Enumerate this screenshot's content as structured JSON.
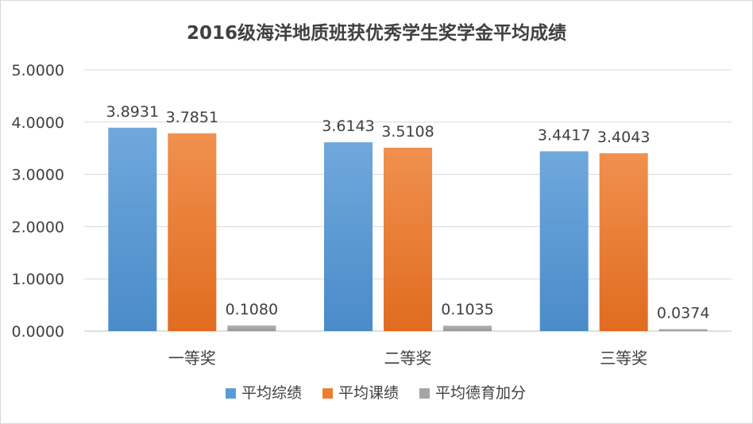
{
  "chart_data": {
    "type": "bar",
    "title": "2016级海洋地质班获优秀学生奖学金平均成绩",
    "categories": [
      "一等奖",
      "二等奖",
      "三等奖"
    ],
    "series": [
      {
        "name": "平均综绩",
        "values": [
          3.8931,
          3.6143,
          3.4417
        ],
        "labels": [
          "3.8931",
          "3.6143",
          "3.4417"
        ],
        "color": "#5B9BD5"
      },
      {
        "name": "平均课绩",
        "values": [
          3.7851,
          3.5108,
          3.4043
        ],
        "labels": [
          "3.7851",
          "3.5108",
          "3.4043"
        ],
        "color": "#ED7D31"
      },
      {
        "name": "平均德育加分",
        "values": [
          0.108,
          0.1035,
          0.0374
        ],
        "labels": [
          "0.1080",
          "0.1035",
          "0.0374"
        ],
        "color": "#A5A5A5"
      }
    ],
    "ylim": [
      0,
      5
    ],
    "yticks": [
      "0.0000",
      "1.0000",
      "2.0000",
      "3.0000",
      "4.0000",
      "5.0000"
    ],
    "grid": true,
    "legend_position": "bottom"
  }
}
